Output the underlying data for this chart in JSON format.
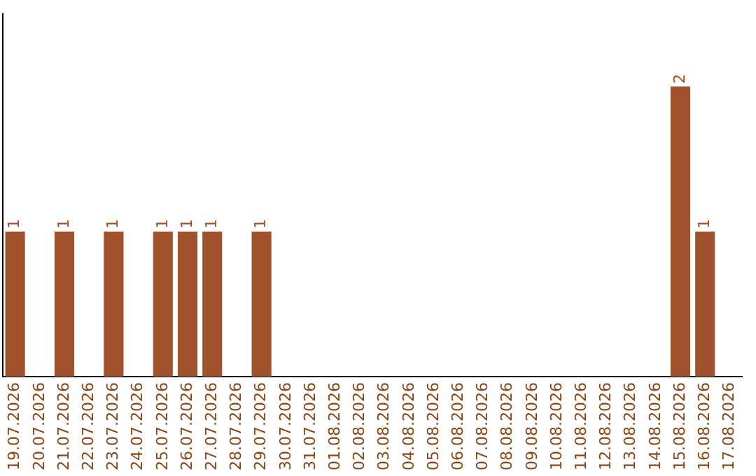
{
  "chart_data": {
    "type": "bar",
    "categories": [
      "19.07.2026",
      "20.07.2026",
      "21.07.2026",
      "22.07.2026",
      "23.07.2026",
      "24.07.2026",
      "25.07.2026",
      "26.07.2026",
      "27.07.2026",
      "28.07.2026",
      "29.07.2026",
      "30.07.2026",
      "31.07.2026",
      "01.08.2026",
      "02.08.2026",
      "03.08.2026",
      "04.08.2026",
      "05.08.2026",
      "06.08.2026",
      "07.08.2026",
      "08.08.2026",
      "09.08.2026",
      "10.08.2026",
      "11.08.2026",
      "12.08.2026",
      "13.08.2026",
      "14.08.2026",
      "15.08.2026",
      "16.08.2026",
      "17.08.2026"
    ],
    "values": [
      1,
      0,
      1,
      0,
      1,
      0,
      1,
      1,
      1,
      0,
      1,
      0,
      0,
      0,
      0,
      0,
      0,
      0,
      0,
      0,
      0,
      0,
      0,
      0,
      0,
      0,
      0,
      2,
      1,
      0
    ],
    "value_labels": [
      "1",
      null,
      "1",
      null,
      "1",
      null,
      "1",
      "1",
      "1",
      null,
      "1",
      null,
      null,
      null,
      null,
      null,
      null,
      null,
      null,
      null,
      null,
      null,
      null,
      null,
      null,
      null,
      null,
      "2",
      "1",
      null
    ],
    "color": "#a0522d",
    "grid": false,
    "legend": false,
    "tick_labels": "x"
  }
}
